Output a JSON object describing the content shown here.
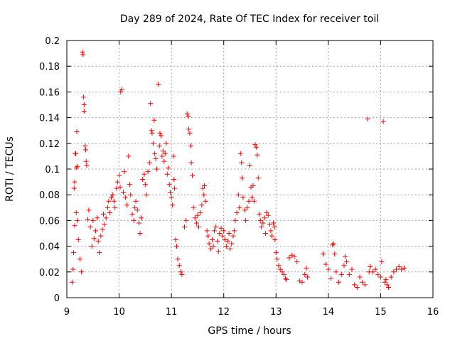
{
  "chart_data": {
    "type": "scatter",
    "title": "Day 289 of 2024, Rate Of TEC Index for receiver toil",
    "xlabel": "GPS time / hours",
    "ylabel": "ROTI / TECUs",
    "xlim": [
      9,
      16
    ],
    "ylim": [
      0,
      0.2
    ],
    "x_ticks": [
      "9",
      "10",
      "11",
      "12",
      "13",
      "14",
      "15",
      "16"
    ],
    "y_ticks": [
      "0",
      "0.02",
      "0.04",
      "0.06",
      "0.08",
      "0.1",
      "0.12",
      "0.14",
      "0.16",
      "0.18",
      "0.2"
    ],
    "grid": true,
    "marker": "plus",
    "color": "#ff0000",
    "series": [
      {
        "points": [
          [
            9.1,
            0.012
          ],
          [
            9.12,
            0.022
          ],
          [
            9.13,
            0.035
          ],
          [
            9.14,
            0.085
          ],
          [
            9.15,
            0.09
          ],
          [
            9.16,
            0.112
          ],
          [
            9.17,
            0.112
          ],
          [
            9.18,
            0.101
          ],
          [
            9.19,
            0.129
          ],
          [
            9.2,
            0.102
          ],
          [
            9.15,
            0.056
          ],
          [
            9.18,
            0.066
          ],
          [
            9.2,
            0.06
          ],
          [
            9.22,
            0.045
          ],
          [
            9.25,
            0.03
          ],
          [
            9.28,
            0.02
          ],
          [
            9.3,
            0.191
          ],
          [
            9.31,
            0.189
          ],
          [
            9.32,
            0.156
          ],
          [
            9.33,
            0.15
          ],
          [
            9.33,
            0.145
          ],
          [
            9.35,
            0.118
          ],
          [
            9.36,
            0.115
          ],
          [
            9.37,
            0.106
          ],
          [
            9.38,
            0.103
          ],
          [
            9.4,
            0.061
          ],
          [
            9.42,
            0.068
          ],
          [
            9.45,
            0.055
          ],
          [
            9.48,
            0.04
          ],
          [
            9.5,
            0.06
          ],
          [
            9.52,
            0.046
          ],
          [
            9.55,
            0.052
          ],
          [
            9.58,
            0.062
          ],
          [
            9.6,
            0.044
          ],
          [
            9.62,
            0.035
          ],
          [
            9.65,
            0.048
          ],
          [
            9.68,
            0.053
          ],
          [
            9.7,
            0.065
          ],
          [
            9.72,
            0.057
          ],
          [
            9.75,
            0.062
          ],
          [
            9.78,
            0.07
          ],
          [
            9.8,
            0.075
          ],
          [
            9.82,
            0.066
          ],
          [
            9.85,
            0.078
          ],
          [
            9.88,
            0.08
          ],
          [
            9.9,
            0.075
          ],
          [
            9.92,
            0.07
          ],
          [
            9.95,
            0.085
          ],
          [
            9.97,
            0.09
          ],
          [
            10.0,
            0.095
          ],
          [
            10.02,
            0.086
          ],
          [
            10.03,
            0.16
          ],
          [
            10.05,
            0.162
          ],
          [
            10.08,
            0.082
          ],
          [
            10.1,
            0.098
          ],
          [
            10.12,
            0.078
          ],
          [
            10.15,
            0.072
          ],
          [
            10.18,
            0.11
          ],
          [
            10.2,
            0.088
          ],
          [
            10.22,
            0.08
          ],
          [
            10.25,
            0.065
          ],
          [
            10.28,
            0.06
          ],
          [
            10.3,
            0.07
          ],
          [
            10.32,
            0.075
          ],
          [
            10.35,
            0.068
          ],
          [
            10.38,
            0.058
          ],
          [
            10.4,
            0.05
          ],
          [
            10.42,
            0.062
          ],
          [
            10.45,
            0.092
          ],
          [
            10.48,
            0.096
          ],
          [
            10.5,
            0.088
          ],
          [
            10.52,
            0.08
          ],
          [
            10.55,
            0.098
          ],
          [
            10.58,
            0.105
          ],
          [
            10.6,
            0.151
          ],
          [
            10.62,
            0.13
          ],
          [
            10.63,
            0.128
          ],
          [
            10.65,
            0.12
          ],
          [
            10.67,
            0.138
          ],
          [
            10.68,
            0.112
          ],
          [
            10.7,
            0.108
          ],
          [
            10.72,
            0.1
          ],
          [
            10.75,
            0.166
          ],
          [
            10.77,
            0.118
          ],
          [
            10.78,
            0.128
          ],
          [
            10.8,
            0.126
          ],
          [
            10.82,
            0.11
          ],
          [
            10.84,
            0.114
          ],
          [
            10.86,
            0.106
          ],
          [
            10.88,
            0.112
          ],
          [
            10.9,
            0.12
          ],
          [
            10.92,
            0.096
          ],
          [
            10.94,
            0.101
          ],
          [
            10.96,
            0.088
          ],
          [
            10.98,
            0.082
          ],
          [
            11.0,
            0.078
          ],
          [
            11.02,
            0.072
          ],
          [
            11.04,
            0.11
          ],
          [
            11.05,
            0.092
          ],
          [
            11.06,
            0.085
          ],
          [
            11.08,
            0.045
          ],
          [
            11.1,
            0.04
          ],
          [
            11.12,
            0.03
          ],
          [
            11.15,
            0.025
          ],
          [
            11.18,
            0.02
          ],
          [
            11.2,
            0.018
          ],
          [
            11.25,
            0.055
          ],
          [
            11.28,
            0.06
          ],
          [
            11.3,
            0.143
          ],
          [
            11.32,
            0.141
          ],
          [
            11.33,
            0.131
          ],
          [
            11.35,
            0.128
          ],
          [
            11.37,
            0.118
          ],
          [
            11.38,
            0.105
          ],
          [
            11.4,
            0.095
          ],
          [
            11.42,
            0.07
          ],
          [
            11.45,
            0.062
          ],
          [
            11.48,
            0.058
          ],
          [
            11.5,
            0.064
          ],
          [
            11.52,
            0.055
          ],
          [
            11.55,
            0.066
          ],
          [
            11.58,
            0.072
          ],
          [
            11.6,
            0.085
          ],
          [
            11.62,
            0.08
          ],
          [
            11.63,
            0.087
          ],
          [
            11.65,
            0.075
          ],
          [
            11.68,
            0.052
          ],
          [
            11.7,
            0.048
          ],
          [
            11.72,
            0.042
          ],
          [
            11.75,
            0.038
          ],
          [
            11.78,
            0.045
          ],
          [
            11.8,
            0.04
          ],
          [
            11.82,
            0.052
          ],
          [
            11.85,
            0.055
          ],
          [
            11.88,
            0.044
          ],
          [
            11.9,
            0.036
          ],
          [
            11.92,
            0.05
          ],
          [
            11.95,
            0.054
          ],
          [
            11.98,
            0.048
          ],
          [
            12.0,
            0.052
          ],
          [
            12.02,
            0.045
          ],
          [
            12.05,
            0.04
          ],
          [
            12.08,
            0.044
          ],
          [
            12.1,
            0.05
          ],
          [
            12.12,
            0.038
          ],
          [
            12.15,
            0.042
          ],
          [
            12.18,
            0.048
          ],
          [
            12.2,
            0.052
          ],
          [
            12.22,
            0.06
          ],
          [
            12.25,
            0.066
          ],
          [
            12.28,
            0.08
          ],
          [
            12.3,
            0.07
          ],
          [
            12.32,
            0.112
          ],
          [
            12.34,
            0.105
          ],
          [
            12.35,
            0.093
          ],
          [
            12.37,
            0.078
          ],
          [
            12.4,
            0.068
          ],
          [
            12.42,
            0.06
          ],
          [
            12.45,
            0.07
          ],
          [
            12.48,
            0.075
          ],
          [
            12.5,
            0.103
          ],
          [
            12.52,
            0.086
          ],
          [
            12.54,
            0.078
          ],
          [
            12.56,
            0.087
          ],
          [
            12.58,
            0.075
          ],
          [
            12.6,
            0.119
          ],
          [
            12.62,
            0.117
          ],
          [
            12.64,
            0.111
          ],
          [
            12.66,
            0.093
          ],
          [
            12.68,
            0.065
          ],
          [
            12.7,
            0.06
          ],
          [
            12.72,
            0.055
          ],
          [
            12.75,
            0.058
          ],
          [
            12.78,
            0.062
          ],
          [
            12.8,
            0.05
          ],
          [
            12.82,
            0.066
          ],
          [
            12.85,
            0.064
          ],
          [
            12.88,
            0.057
          ],
          [
            12.9,
            0.052
          ],
          [
            12.92,
            0.048
          ],
          [
            12.95,
            0.058
          ],
          [
            12.97,
            0.055
          ],
          [
            12.98,
            0.045
          ],
          [
            13.0,
            0.035
          ],
          [
            13.02,
            0.03
          ],
          [
            13.05,
            0.025
          ],
          [
            13.08,
            0.022
          ],
          [
            13.12,
            0.02
          ],
          [
            13.15,
            0.018
          ],
          [
            13.18,
            0.015
          ],
          [
            13.2,
            0.014
          ],
          [
            13.25,
            0.031
          ],
          [
            13.3,
            0.033
          ],
          [
            13.35,
            0.032
          ],
          [
            13.4,
            0.028
          ],
          [
            13.45,
            0.013
          ],
          [
            13.5,
            0.012
          ],
          [
            13.55,
            0.018
          ],
          [
            13.58,
            0.023
          ],
          [
            13.6,
            0.016
          ],
          [
            13.9,
            0.034
          ],
          [
            13.95,
            0.026
          ],
          [
            14.0,
            0.022
          ],
          [
            14.05,
            0.015
          ],
          [
            14.08,
            0.041
          ],
          [
            14.1,
            0.042
          ],
          [
            14.12,
            0.034
          ],
          [
            14.15,
            0.02
          ],
          [
            14.2,
            0.012
          ],
          [
            14.25,
            0.018
          ],
          [
            14.3,
            0.025
          ],
          [
            14.32,
            0.032
          ],
          [
            14.35,
            0.028
          ],
          [
            14.4,
            0.018
          ],
          [
            14.45,
            0.022
          ],
          [
            14.5,
            0.01
          ],
          [
            14.55,
            0.008
          ],
          [
            14.6,
            0.016
          ],
          [
            14.65,
            0.012
          ],
          [
            14.7,
            0.01
          ],
          [
            14.75,
            0.139
          ],
          [
            14.78,
            0.02
          ],
          [
            14.8,
            0.024
          ],
          [
            14.85,
            0.02
          ],
          [
            14.9,
            0.022
          ],
          [
            14.95,
            0.018
          ],
          [
            15.0,
            0.016
          ],
          [
            15.02,
            0.028
          ],
          [
            15.05,
            0.137
          ],
          [
            15.08,
            0.012
          ],
          [
            15.1,
            0.014
          ],
          [
            15.12,
            0.01
          ],
          [
            15.15,
            0.008
          ],
          [
            15.2,
            0.016
          ],
          [
            15.25,
            0.02
          ],
          [
            15.3,
            0.022
          ],
          [
            15.35,
            0.024
          ],
          [
            15.4,
            0.022
          ],
          [
            15.45,
            0.023
          ]
        ]
      }
    ]
  }
}
